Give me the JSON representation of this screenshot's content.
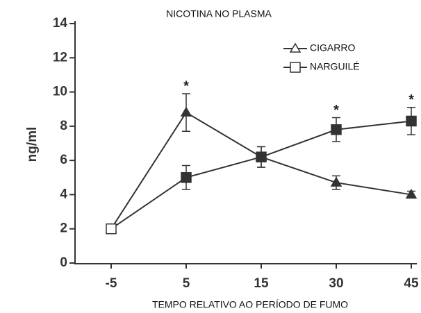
{
  "chart_data": {
    "type": "line",
    "title": "NICOTINA NO PLASMA",
    "y_label": "ng/ml",
    "x_label": "TEMPO RELATIVO AO PERÍODO DE FUMO",
    "categories": [
      "-5",
      "5",
      "15",
      "30",
      "45"
    ],
    "series": [
      {
        "name": "CIGARRO",
        "marker": "triangle",
        "color": "#333333",
        "values": [
          2.0,
          8.8,
          6.2,
          4.7,
          4.0
        ],
        "errors": [
          0.1,
          1.1,
          0.6,
          0.4,
          0.2
        ]
      },
      {
        "name": "NARGUILÉ",
        "marker": "square",
        "color": "#333333",
        "values": [
          2.0,
          5.0,
          6.2,
          7.8,
          8.3
        ],
        "errors": [
          0.1,
          0.7,
          0.6,
          0.7,
          0.8
        ]
      }
    ],
    "annotations": [
      {
        "text": "*",
        "x": "5"
      },
      {
        "text": "*",
        "x": "30"
      },
      {
        "text": "*",
        "x": "45"
      }
    ],
    "ylim": [
      0,
      14
    ],
    "yticks": [
      0,
      2,
      4,
      6,
      8,
      10,
      12,
      14
    ],
    "legend": "top-right"
  }
}
